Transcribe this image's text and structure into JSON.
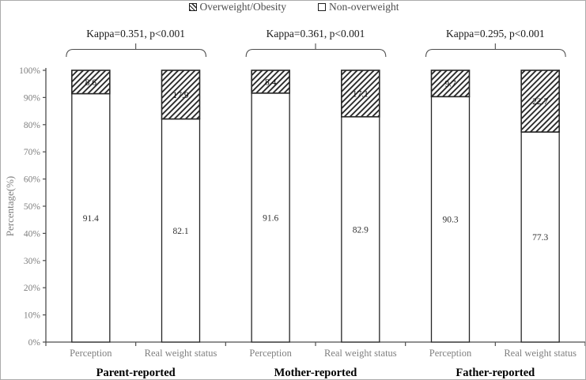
{
  "figure": {
    "legend": [
      {
        "label": "Overweight/Obesity",
        "pattern": "hatched"
      },
      {
        "label": "Non-overweight",
        "pattern": "plain"
      }
    ]
  },
  "chart_data": {
    "type": "bar",
    "subtype": "stacked-percent",
    "title": "",
    "ylabel": "Percentage(%)",
    "ylim": [
      0,
      100
    ],
    "ytick_labels": [
      "0%",
      "10%",
      "20%",
      "30%",
      "40%",
      "50%",
      "60%",
      "70%",
      "80%",
      "90%",
      "100%"
    ],
    "legend": [
      {
        "label": "Overweight/Obesity",
        "pattern": "hatched"
      },
      {
        "label": "Non-overweight",
        "pattern": "plain"
      }
    ],
    "legend_position": "top-center",
    "grid": false,
    "series_names": [
      "Non-overweight",
      "Overweight/Obesity"
    ],
    "groups": [
      {
        "name": "Parent-reported",
        "annotation": "Kappa=0.351, p<0.001",
        "bars": [
          {
            "label": "Perception",
            "non_overweight": 91.4,
            "overweight_obesity": 8.6
          },
          {
            "label": "Real weight status",
            "non_overweight": 82.1,
            "overweight_obesity": 17.9
          }
        ]
      },
      {
        "name": "Mother-reported",
        "annotation": "Kappa=0.361, p<0.001",
        "bars": [
          {
            "label": "Perception",
            "non_overweight": 91.6,
            "overweight_obesity": 8.4
          },
          {
            "label": "Real weight status",
            "non_overweight": 82.9,
            "overweight_obesity": 17.1
          }
        ]
      },
      {
        "name": "Father-reported",
        "annotation": "Kappa=0.295, p<0.001",
        "bars": [
          {
            "label": "Perception",
            "non_overweight": 90.3,
            "overweight_obesity": 9.7
          },
          {
            "label": "Real weight status",
            "non_overweight": 77.3,
            "overweight_obesity": 22.7
          }
        ]
      }
    ],
    "colors": {
      "bar_border": "#262626",
      "hatch_line": "#1f1f1f",
      "axis": "#4d4d4d",
      "muted_text": "#7f7f7f",
      "annotation_text": "#1a1a1a",
      "group_label_text": "#000000",
      "bar_fill": "#ffffff"
    }
  }
}
